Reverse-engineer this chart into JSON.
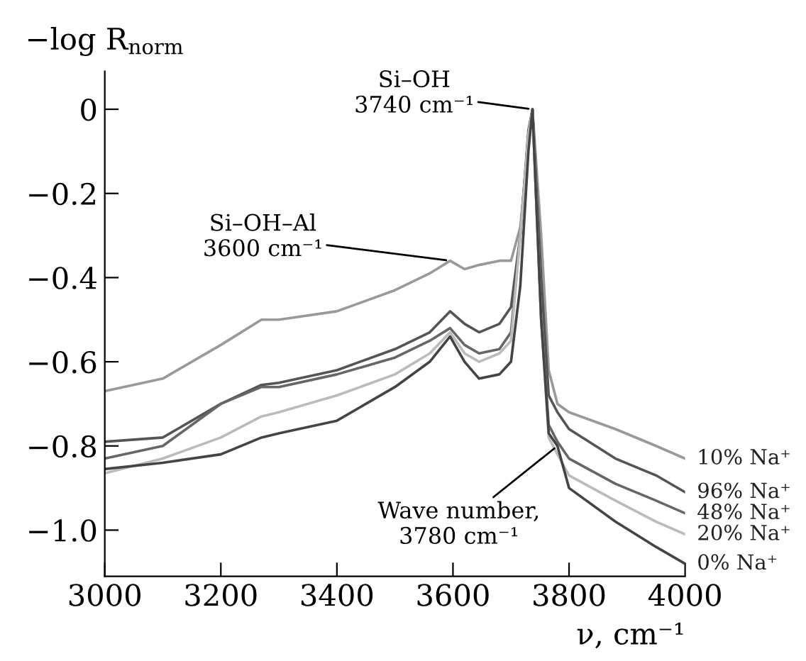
{
  "chart_data": {
    "type": "line",
    "xlabel": "ν, cm⁻¹",
    "ylabel": "−log R$_{norm}$",
    "xlim": [
      3000,
      4000
    ],
    "ylim": [
      -1.11,
      0.09
    ],
    "xticks": [
      3000,
      3200,
      3400,
      3600,
      3800,
      4000
    ],
    "yticks": [
      {
        "value": 0,
        "label": "0"
      },
      {
        "value": -0.2,
        "label": "−0.2"
      },
      {
        "value": -0.4,
        "label": "−0.4"
      },
      {
        "value": -0.6,
        "label": "−0.6"
      },
      {
        "value": -0.8,
        "label": "−0.8"
      },
      {
        "value": -1.0,
        "label": "−1.0"
      }
    ],
    "grid": false,
    "legend": false,
    "marker": "none",
    "line_style": "solid",
    "x": [
      3000,
      3100,
      3200,
      3270,
      3300,
      3400,
      3500,
      3560,
      3595,
      3620,
      3645,
      3680,
      3700,
      3716,
      3730,
      3737,
      3752,
      3765,
      3780,
      3800,
      3880,
      3950,
      4000
    ],
    "series": [
      {
        "name": "10% Na⁺",
        "color": "#999999",
        "values": [
          -0.67,
          -0.64,
          -0.56,
          -0.5,
          -0.5,
          -0.48,
          -0.43,
          -0.39,
          -0.36,
          -0.38,
          -0.37,
          -0.36,
          -0.36,
          -0.28,
          -0.08,
          0,
          -0.3,
          -0.62,
          -0.7,
          -0.72,
          -0.76,
          -0.8,
          -0.83
        ]
      },
      {
        "name": "96% Na⁺",
        "color": "#555555",
        "values": [
          -0.79,
          -0.78,
          -0.7,
          -0.655,
          -0.65,
          -0.62,
          -0.57,
          -0.53,
          -0.48,
          -0.51,
          -0.53,
          -0.51,
          -0.47,
          -0.3,
          -0.05,
          0,
          -0.4,
          -0.68,
          -0.72,
          -0.76,
          -0.83,
          -0.87,
          -0.91
        ]
      },
      {
        "name": "48% Na⁺",
        "color": "#666666",
        "values": [
          -0.83,
          -0.8,
          -0.7,
          -0.66,
          -0.66,
          -0.63,
          -0.59,
          -0.55,
          -0.52,
          -0.56,
          -0.58,
          -0.57,
          -0.53,
          -0.3,
          -0.06,
          0,
          -0.5,
          -0.75,
          -0.79,
          -0.83,
          -0.89,
          -0.93,
          -0.96
        ]
      },
      {
        "name": "20% Na⁺",
        "color": "#bbbbbb",
        "values": [
          -0.865,
          -0.83,
          -0.78,
          -0.73,
          -0.72,
          -0.68,
          -0.63,
          -0.58,
          -0.53,
          -0.58,
          -0.6,
          -0.58,
          -0.55,
          -0.3,
          -0.06,
          0,
          -0.5,
          -0.78,
          -0.82,
          -0.87,
          -0.93,
          -0.98,
          -1.01
        ]
      },
      {
        "name": "0% Na⁺",
        "color": "#444444",
        "values": [
          -0.855,
          -0.84,
          -0.82,
          -0.78,
          -0.77,
          -0.74,
          -0.66,
          -0.6,
          -0.54,
          -0.6,
          -0.64,
          -0.63,
          -0.6,
          -0.42,
          -0.1,
          0,
          -0.5,
          -0.77,
          -0.8,
          -0.9,
          -0.98,
          -1.04,
          -1.08
        ]
      }
    ],
    "annotations": [
      {
        "text": "Si–OH\n3740 cm⁻¹",
        "x": 3737,
        "y": 0
      },
      {
        "text": "Si–OH–Al\n3600 cm⁻¹",
        "x": 3595,
        "y": -0.36
      },
      {
        "text": "Wave number,\n3780 cm⁻¹",
        "x": 3780,
        "y": -0.8
      }
    ]
  }
}
